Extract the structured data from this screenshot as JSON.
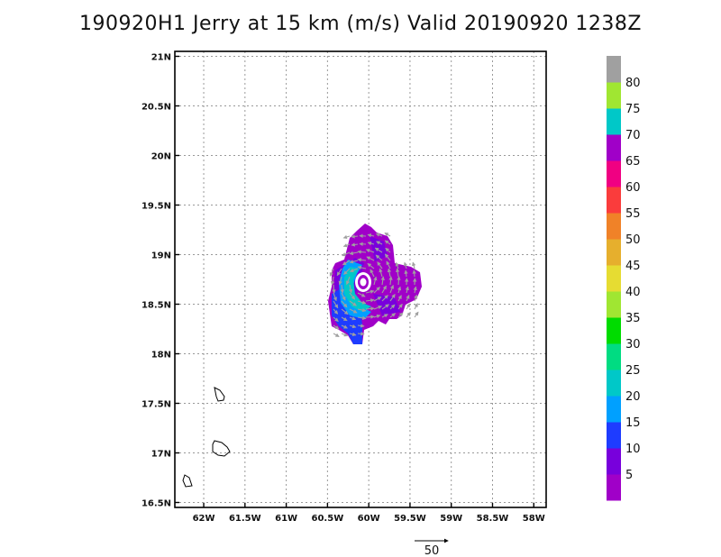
{
  "title": "190920H1 Jerry at 15 km (m/s) Valid 20190920 1238Z",
  "map": {
    "lon_range": [
      -62.35,
      -57.85
    ],
    "lat_range": [
      16.45,
      21.05
    ],
    "lon_ticks": [
      {
        "v": -62.0,
        "label": "62W"
      },
      {
        "v": -61.5,
        "label": "61.5W"
      },
      {
        "v": -61.0,
        "label": "61W"
      },
      {
        "v": -60.5,
        "label": "60.5W"
      },
      {
        "v": -60.0,
        "label": "60W"
      },
      {
        "v": -59.5,
        "label": "59.5W"
      },
      {
        "v": -59.0,
        "label": "59W"
      },
      {
        "v": -58.5,
        "label": "58.5W"
      },
      {
        "v": -58.0,
        "label": "58W"
      }
    ],
    "lat_ticks": [
      {
        "v": 16.5,
        "label": "16.5N"
      },
      {
        "v": 17.0,
        "label": "17N"
      },
      {
        "v": 17.5,
        "label": "17.5N"
      },
      {
        "v": 18.0,
        "label": "18N"
      },
      {
        "v": 18.5,
        "label": "18.5N"
      },
      {
        "v": 19.0,
        "label": "19N"
      },
      {
        "v": 19.5,
        "label": "19.5N"
      },
      {
        "v": 20.0,
        "label": "20N"
      },
      {
        "v": 20.5,
        "label": "20.5N"
      },
      {
        "v": 21.0,
        "label": "21N"
      }
    ],
    "grid": true,
    "field_colors": {
      "purple": "#a000c8",
      "violet": "#7800dc",
      "blue": "#1e3cff",
      "sky": "#00a0ff",
      "teal": "#00c8c8"
    },
    "vector_color": "#a0a0a0",
    "coast_color": "#000000"
  },
  "colorbar": {
    "colors": [
      "#a000c8",
      "#7800dc",
      "#1e3cff",
      "#00a0ff",
      "#00c8c8",
      "#00dc82",
      "#00dc00",
      "#a0e632",
      "#e6dc32",
      "#e6af2d",
      "#f08228",
      "#fa3c3c",
      "#f00082",
      "#a000c8",
      "#00c8c8",
      "#a0e632",
      "#a0a0a0"
    ],
    "labels": [
      "5",
      "10",
      "15",
      "20",
      "25",
      "30",
      "35",
      "40",
      "45",
      "50",
      "55",
      "60",
      "65",
      "70",
      "75",
      "80"
    ]
  },
  "reference_vector": {
    "value": 50,
    "label": "50"
  }
}
